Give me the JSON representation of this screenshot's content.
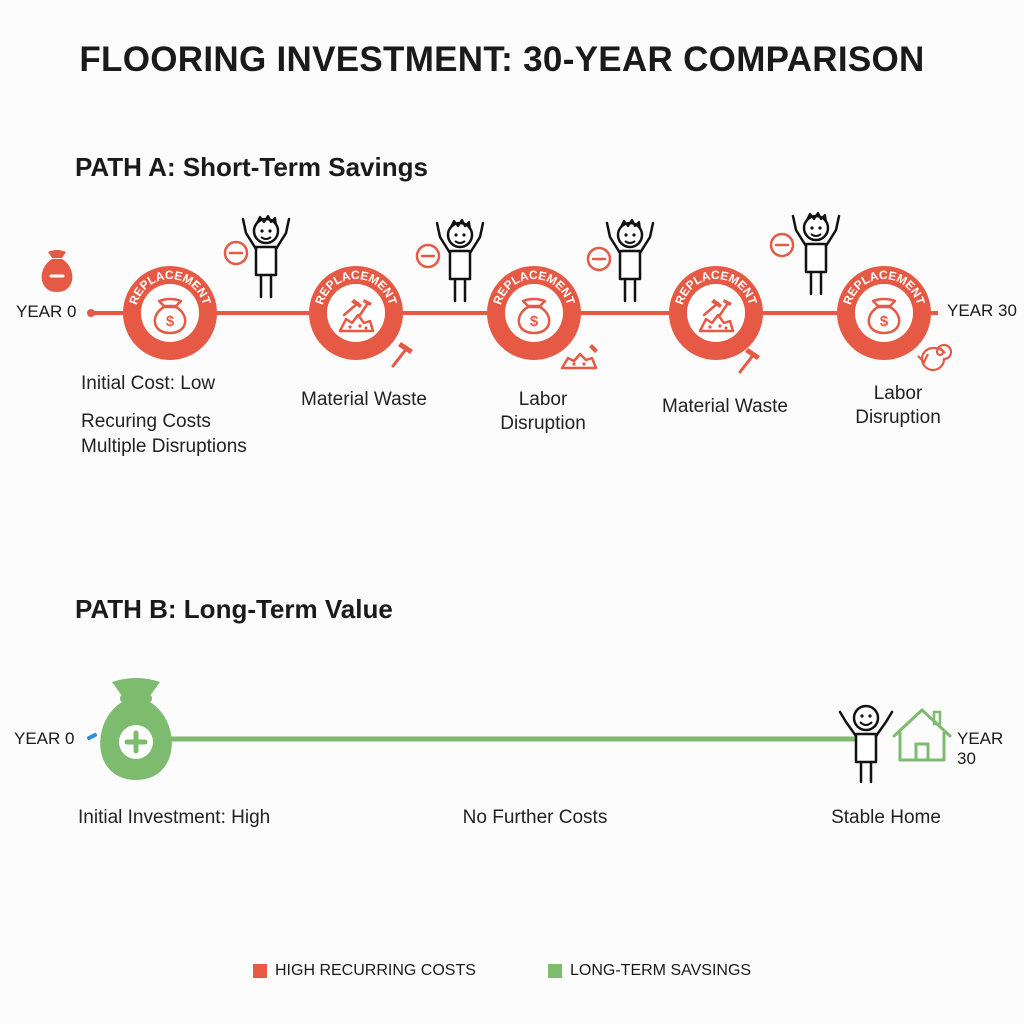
{
  "title": "FLOORING INVESTMENT: 30-YEAR COMPARISON",
  "colors": {
    "red": "#e65a45",
    "green": "#7dbb6e",
    "blue": "#2a8fd8"
  },
  "path_a": {
    "title": "PATH A: Short-Term Savings",
    "start_label": "YEAR 0",
    "end_label": "YEAR 30",
    "ring_text": "REPLACEMENT",
    "nodes": [
      {
        "icon": "money-bag-icon"
      },
      {
        "icon": "rubble-hammer-icon"
      },
      {
        "icon": "money-bag-icon"
      },
      {
        "icon": "rubble-hammer-icon"
      },
      {
        "icon": "money-bag-icon"
      }
    ],
    "captions": {
      "initial_cost": "Initial Cost: Low",
      "recurring": "Recuring Costs",
      "disruptions": "Multiple Disruptions",
      "c1": "Material Waste",
      "c2a": "Labor",
      "c2b": "Disruption",
      "c3": "Material Waste",
      "c4a": "Labor",
      "c4b": "Disruption"
    }
  },
  "path_b": {
    "title": "PATH B: Long-Term Value",
    "start_label": "YEAR 0",
    "end_label": "YEAR 30",
    "captions": {
      "initial": "Initial Investment: High",
      "middle": "No Further Costs",
      "end": "Stable Home"
    }
  },
  "legend": [
    {
      "label": "HIGH RECURRING COSTS",
      "color": "#e65a45"
    },
    {
      "label": "LONG-TERM SAVSINGS",
      "color": "#7dbb6e"
    }
  ]
}
